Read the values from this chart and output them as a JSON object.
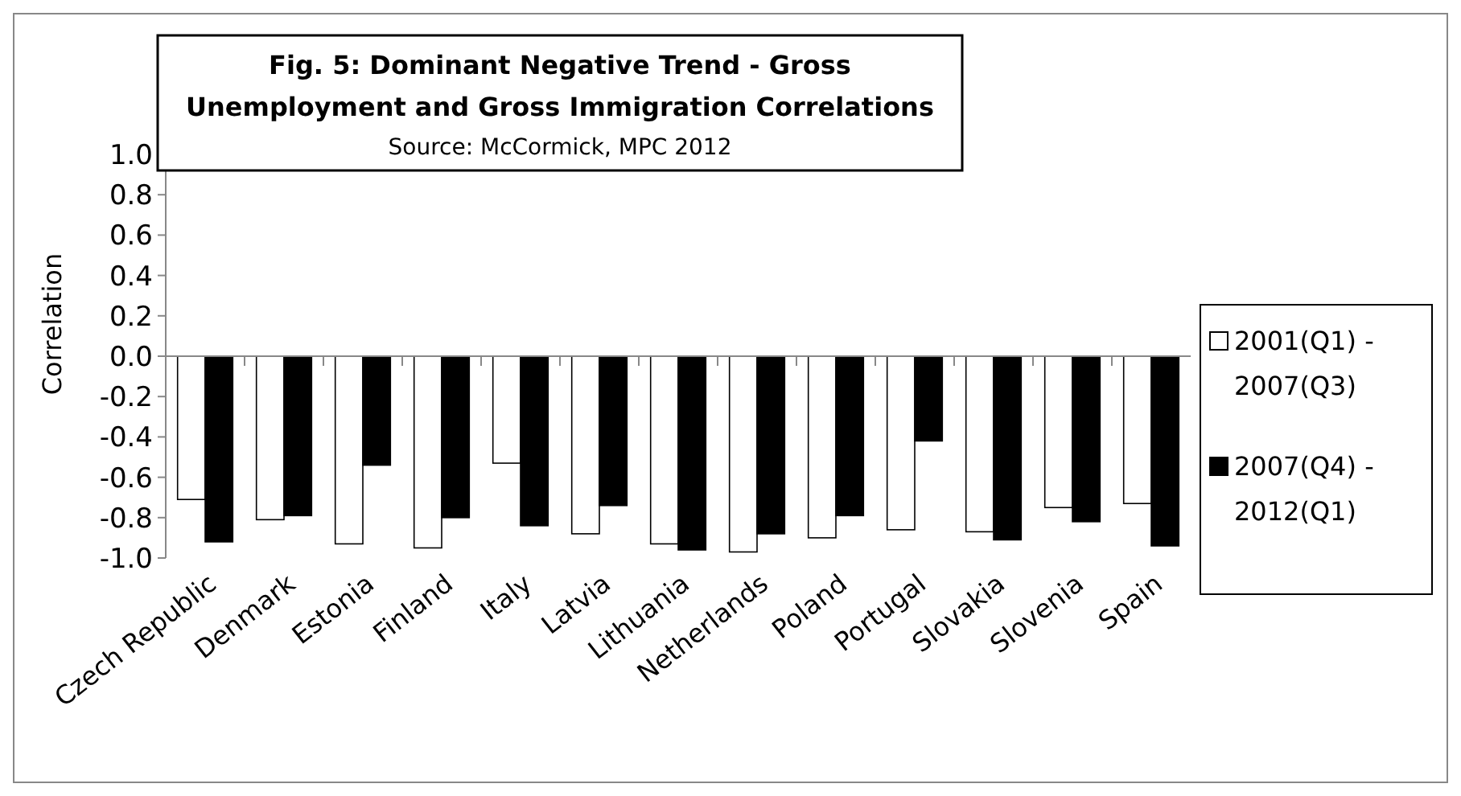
{
  "chart_data": {
    "type": "bar",
    "title": "Fig. 5: Dominant Negative Trend - Gross Unemployment and Gross Immigration Correlations",
    "subtitle": "Source: McCormick, MPC 2012",
    "ylabel": "Correlation",
    "categories": [
      "Czech Republic",
      "Denmark",
      "Estonia",
      "Finland",
      "Italy",
      "Latvia",
      "Lithuania",
      "Netherlands",
      "Poland",
      "Portugal",
      "Slovakia",
      "Slovenia",
      "Spain"
    ],
    "series": [
      {
        "name": "2001(Q1) - 2007(Q3)",
        "color": "#ffffff",
        "values": [
          -0.71,
          -0.81,
          -0.93,
          -0.95,
          -0.53,
          -0.88,
          -0.93,
          -0.97,
          -0.9,
          -0.86,
          -0.87,
          -0.75,
          -0.73
        ]
      },
      {
        "name": "2007(Q4) - 2012(Q1)",
        "color": "#000000",
        "values": [
          -0.92,
          -0.79,
          -0.54,
          -0.8,
          -0.84,
          -0.74,
          -0.96,
          -0.88,
          -0.79,
          -0.42,
          -0.91,
          -0.82,
          -0.94
        ]
      }
    ],
    "ylim": [
      -1,
      1
    ],
    "yticks": [
      {
        "value": -1,
        "label": "-1.0"
      },
      {
        "value": -0.8,
        "label": "-0.8"
      },
      {
        "value": -0.6,
        "label": "-0.6"
      },
      {
        "value": -0.4,
        "label": "-0.4"
      },
      {
        "value": -0.2,
        "label": "-0.2"
      },
      {
        "value": 0,
        "label": "0.0"
      },
      {
        "value": 0.2,
        "label": "0.2"
      },
      {
        "value": 0.4,
        "label": "0.4"
      },
      {
        "value": 0.6,
        "label": "0.6"
      },
      {
        "value": 0.8,
        "label": "0.8"
      },
      {
        "value": 1,
        "label": "1.0"
      }
    ],
    "legend": "right"
  }
}
